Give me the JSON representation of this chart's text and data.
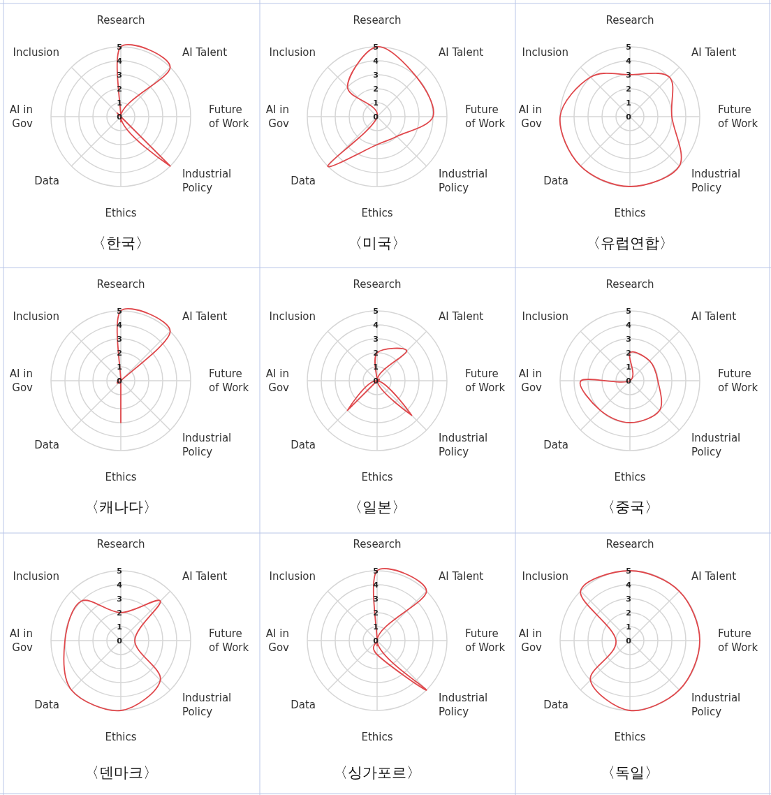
{
  "chart_data": [
    {
      "type": "radar",
      "title": "〈한국〉",
      "categories": [
        "Research",
        "AI Talent",
        "Future of Work",
        "Industrial Policy",
        "Ethics",
        "Data",
        "AI in Gov",
        "Inclusion"
      ],
      "series": [
        {
          "color": "#e0484c",
          "values": [
            5,
            5,
            0,
            5,
            0,
            0,
            0,
            0
          ]
        }
      ],
      "ylim": [
        0,
        5
      ],
      "yticks": [
        0,
        1,
        2,
        3,
        4,
        5
      ],
      "grid": true,
      "marker": "none"
    },
    {
      "type": "radar",
      "title": "〈미국〉",
      "categories": [
        "Research",
        "AI Talent",
        "Future of Work",
        "Industrial Policy",
        "Ethics",
        "Data",
        "AI in Gov",
        "Inclusion"
      ],
      "series": [
        {
          "color": "#e0484c",
          "values": [
            5,
            4,
            4,
            2,
            2,
            5,
            0,
            3
          ]
        }
      ],
      "ylim": [
        0,
        5
      ],
      "yticks": [
        0,
        1,
        2,
        3,
        4,
        5
      ],
      "grid": true,
      "marker": "none"
    },
    {
      "type": "radar",
      "title": "〈유럽연합〉",
      "categories": [
        "Research",
        "AI Talent",
        "Future of Work",
        "Industrial Policy",
        "Ethics",
        "Data",
        "AI in Gov",
        "Inclusion"
      ],
      "series": [
        {
          "color": "#e0484c",
          "values": [
            3,
            4,
            3,
            5,
            5,
            5,
            5,
            4
          ]
        }
      ],
      "ylim": [
        0,
        5
      ],
      "yticks": [
        0,
        1,
        2,
        3,
        4,
        5
      ],
      "grid": true,
      "marker": "none"
    },
    {
      "type": "radar",
      "title": "〈캐나다〉",
      "categories": [
        "Research",
        "AI Talent",
        "Future of Work",
        "Industrial Policy",
        "Ethics",
        "Data",
        "AI in Gov",
        "Inclusion"
      ],
      "series": [
        {
          "color": "#e0484c",
          "values": [
            5,
            5,
            0,
            0,
            3,
            0,
            0,
            0
          ]
        }
      ],
      "ylim": [
        0,
        5
      ],
      "yticks": [
        0,
        1,
        2,
        3,
        4,
        5
      ],
      "grid": true,
      "marker": "none"
    },
    {
      "type": "radar",
      "title": "〈일본〉",
      "categories": [
        "Research",
        "AI Talent",
        "Future of Work",
        "Industrial Policy",
        "Ethics",
        "Data",
        "AI in Gov",
        "Inclusion"
      ],
      "series": [
        {
          "color": "#e0484c",
          "values": [
            2,
            3,
            0,
            3.5,
            0,
            3,
            0,
            0
          ]
        }
      ],
      "ylim": [
        0,
        5
      ],
      "yticks": [
        0,
        1,
        2,
        3,
        4,
        5
      ],
      "grid": true,
      "marker": "none"
    },
    {
      "type": "radar",
      "title": "〈중국〉",
      "categories": [
        "Research",
        "AI Talent",
        "Future of Work",
        "Industrial Policy",
        "Ethics",
        "Data",
        "AI in Gov",
        "Inclusion"
      ],
      "series": [
        {
          "color": "#e0484c",
          "values": [
            2,
            2,
            2,
            3,
            3,
            3,
            3.5,
            0
          ]
        }
      ],
      "ylim": [
        0,
        5
      ],
      "yticks": [
        0,
        1,
        2,
        3,
        4,
        5
      ],
      "grid": true,
      "marker": "none"
    },
    {
      "type": "radar",
      "title": "〈덴마크〉",
      "categories": [
        "Research",
        "AI Talent",
        "Future of Work",
        "Industrial Policy",
        "Ethics",
        "Data",
        "AI in Gov",
        "Inclusion"
      ],
      "series": [
        {
          "color": "#e0484c",
          "values": [
            2,
            4,
            1,
            4,
            5,
            5,
            4,
            4
          ]
        }
      ],
      "ylim": [
        0,
        5
      ],
      "yticks": [
        0,
        1,
        2,
        3,
        4,
        5
      ],
      "grid": true,
      "marker": "none"
    },
    {
      "type": "radar",
      "title": "〈싱가포르〉",
      "categories": [
        "Research",
        "AI Talent",
        "Future of Work",
        "Industrial Policy",
        "Ethics",
        "Data",
        "AI in Gov",
        "Inclusion"
      ],
      "series": [
        {
          "color": "#e0484c",
          "values": [
            5,
            5,
            0,
            5,
            1,
            0,
            0,
            0
          ]
        }
      ],
      "ylim": [
        0,
        5
      ],
      "yticks": [
        0,
        1,
        2,
        3,
        4,
        5
      ],
      "grid": true,
      "marker": "none"
    },
    {
      "type": "radar",
      "title": "〈독일〉",
      "categories": [
        "Research",
        "AI Talent",
        "Future of Work",
        "Industrial Policy",
        "Ethics",
        "Data",
        "AI in Gov",
        "Inclusion"
      ],
      "series": [
        {
          "color": "#e0484c",
          "values": [
            5,
            5,
            5,
            5,
            5,
            4,
            1,
            5
          ]
        }
      ],
      "ylim": [
        0,
        5
      ],
      "yticks": [
        0,
        1,
        2,
        3,
        4,
        5
      ],
      "grid": true,
      "marker": "none"
    }
  ]
}
